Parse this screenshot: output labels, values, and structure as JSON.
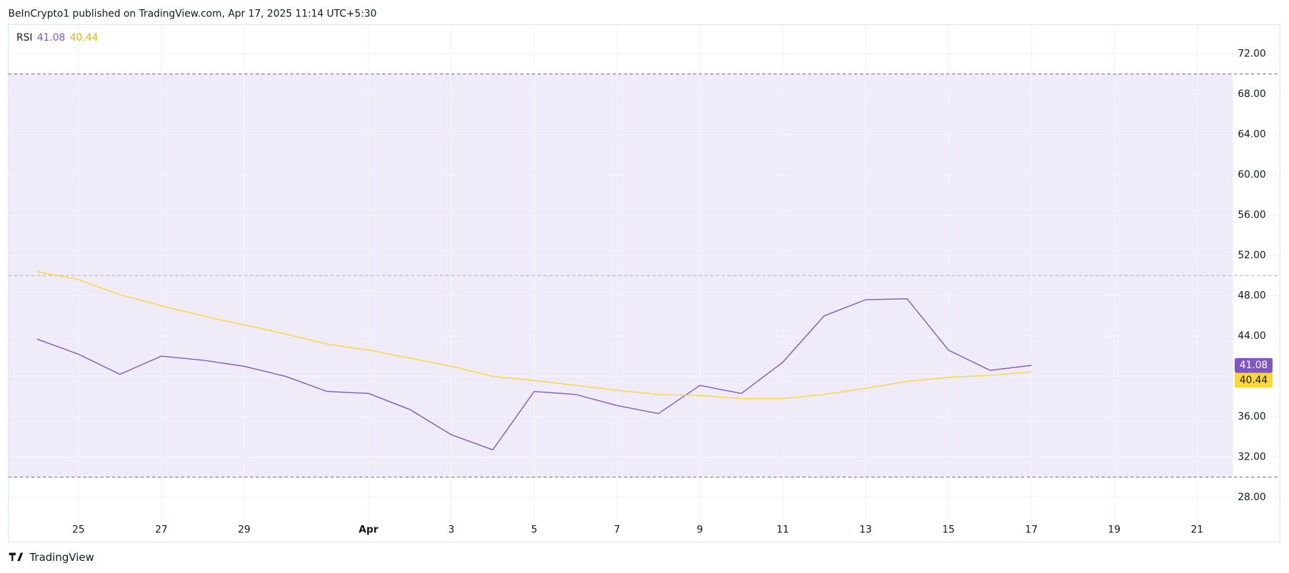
{
  "header": "BeInCrypto1 published on TradingView.com, Apr 17, 2025 11:14 UTC+5:30",
  "footer": "TradingView",
  "chart_data": {
    "type": "line",
    "categories": [
      null,
      "25",
      null,
      "27",
      null,
      "29",
      null,
      null,
      "Apr",
      null,
      "3",
      null,
      "5",
      null,
      "7",
      null,
      "9",
      null,
      "11",
      null,
      "13",
      null,
      "15",
      null,
      "17",
      null,
      "19",
      null,
      "21"
    ],
    "series": [
      {
        "name": "RSI",
        "color": "#7e57c2",
        "values": [
          43.7,
          42.2,
          40.2,
          42.0,
          41.6,
          41.0,
          40.0,
          38.5,
          38.3,
          36.7,
          34.2,
          32.7,
          38.5,
          38.2,
          37.1,
          36.3,
          39.1,
          38.3,
          41.4,
          46.0,
          47.6,
          47.7,
          42.6,
          40.6,
          41.08,
          null,
          null,
          null,
          null
        ]
      },
      {
        "color": "#fdd835",
        "values": [
          50.4,
          49.6,
          48.1,
          47.0,
          46.0,
          45.1,
          44.2,
          43.2,
          42.6,
          41.8,
          41.0,
          40.0,
          39.6,
          39.1,
          38.6,
          38.2,
          38.1,
          37.8,
          37.8,
          38.2,
          38.8,
          39.5,
          39.9,
          40.1,
          40.44,
          null,
          null,
          null,
          null
        ]
      }
    ],
    "ylim": [
      26.4,
      74.9
    ],
    "yticks": [
      {
        "value": 28,
        "label": "28.00"
      },
      {
        "value": 32,
        "label": "32.00"
      },
      {
        "value": 36,
        "label": "36.00"
      },
      {
        "value": 40,
        "label": "40.00"
      },
      {
        "value": 44,
        "label": "44.00"
      },
      {
        "value": 48,
        "label": "48.00"
      },
      {
        "value": 52,
        "label": "52.00"
      },
      {
        "value": 56,
        "label": "56.00"
      },
      {
        "value": 60,
        "label": "60.00"
      },
      {
        "value": 64,
        "label": "64.00"
      },
      {
        "value": 68,
        "label": "68.00"
      },
      {
        "value": 72,
        "label": "72.00"
      }
    ],
    "hlines": [
      70,
      50,
      30
    ],
    "band_color": "#efebf8",
    "grid": true
  }
}
